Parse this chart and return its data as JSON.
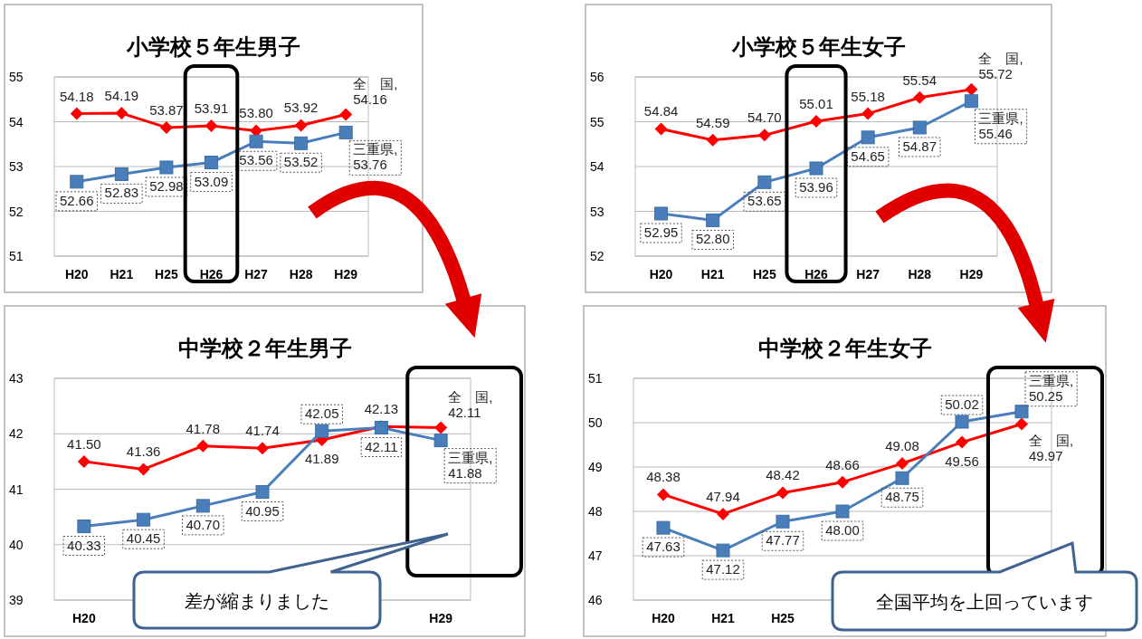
{
  "chart_data": [
    {
      "type": "line",
      "title": "小学校５年生男子",
      "categories": [
        "H20",
        "H21",
        "H25",
        "H26",
        "H27",
        "H28",
        "H29"
      ],
      "ylim": [
        51,
        55
      ],
      "yticks": [
        51,
        52,
        53,
        54,
        55
      ],
      "grid": "y",
      "series": [
        {
          "name": "全　国,",
          "color": "#ff0000",
          "marker": "diamond",
          "values": [
            54.18,
            54.19,
            53.87,
            53.91,
            53.8,
            53.92,
            54.16
          ],
          "value_labels": [
            "54.18",
            "54.19",
            "53.87",
            "53.91",
            "53.80",
            "53.92",
            "54.16"
          ]
        },
        {
          "name": "三重県,",
          "color": "#4a7ebb",
          "marker": "square",
          "values": [
            52.66,
            52.83,
            52.98,
            53.09,
            53.56,
            53.52,
            53.76
          ],
          "value_labels": [
            "52.66",
            "52.83",
            "52.98",
            "53.09",
            "53.56",
            "53.52",
            "53.76"
          ]
        }
      ]
    },
    {
      "type": "line",
      "title": "小学校５年生女子",
      "categories": [
        "H20",
        "H21",
        "H25",
        "H26",
        "H27",
        "H28",
        "H29"
      ],
      "ylim": [
        52,
        56
      ],
      "yticks": [
        52,
        53,
        54,
        55,
        56
      ],
      "grid": "y",
      "series": [
        {
          "name": "全　国,",
          "color": "#ff0000",
          "marker": "diamond",
          "values": [
            54.84,
            54.59,
            54.7,
            55.01,
            55.18,
            55.54,
            55.72
          ],
          "value_labels": [
            "54.84",
            "54.59",
            "54.70",
            "55.01",
            "55.18",
            "55.54",
            "55.72"
          ]
        },
        {
          "name": "三重県,",
          "color": "#4a7ebb",
          "marker": "square",
          "values": [
            52.95,
            52.8,
            53.65,
            53.96,
            54.65,
            54.87,
            55.46
          ],
          "value_labels": [
            "52.95",
            "52.80",
            "53.65",
            "53.96",
            "54.65",
            "54.87",
            "55.46"
          ]
        }
      ]
    },
    {
      "type": "line",
      "title": "中学校２年生男子",
      "categories": [
        "H20",
        null,
        null,
        null,
        null,
        null,
        "H29"
      ],
      "ylim": [
        39,
        43
      ],
      "yticks": [
        39,
        40,
        41,
        42,
        43
      ],
      "grid": "y",
      "annotations": [
        "差が縮まりました"
      ],
      "series": [
        {
          "name": "全　国,",
          "color": "#ff0000",
          "marker": "diamond",
          "values": [
            41.5,
            41.36,
            41.78,
            41.74,
            41.89,
            42.13,
            42.11
          ],
          "value_labels": [
            "41.50",
            "41.36",
            "41.78",
            "41.74",
            "41.89",
            "42.13",
            "42.11"
          ]
        },
        {
          "name": "三重県,",
          "color": "#4a7ebb",
          "marker": "square",
          "values": [
            40.33,
            40.45,
            40.7,
            40.95,
            42.05,
            42.11,
            41.88
          ],
          "value_labels": [
            "40.33",
            "40.45",
            "40.70",
            "40.95",
            "42.05",
            "42.11",
            "41.88"
          ]
        }
      ]
    },
    {
      "type": "line",
      "title": "中学校２年生女子",
      "categories": [
        "H20",
        "H21",
        "H25",
        null,
        null,
        null,
        null
      ],
      "ylim": [
        46,
        51
      ],
      "yticks": [
        46,
        47,
        48,
        49,
        50,
        51
      ],
      "grid": "y",
      "annotations": [
        "全国平均を上回っています"
      ],
      "series": [
        {
          "name": "全　国,",
          "color": "#ff0000",
          "marker": "diamond",
          "values": [
            48.38,
            47.94,
            48.42,
            48.66,
            49.08,
            49.56,
            49.97
          ],
          "value_labels": [
            "48.38",
            "47.94",
            "48.42",
            "48.66",
            "49.08",
            "49.56",
            "49.97"
          ]
        },
        {
          "name": "三重県,",
          "color": "#4a7ebb",
          "marker": "square",
          "values": [
            47.63,
            47.12,
            47.77,
            48.0,
            48.75,
            50.02,
            50.25
          ],
          "value_labels": [
            "47.63",
            "47.12",
            "47.77",
            "48.00",
            "48.75",
            "50.02",
            "50.25"
          ]
        }
      ]
    }
  ]
}
